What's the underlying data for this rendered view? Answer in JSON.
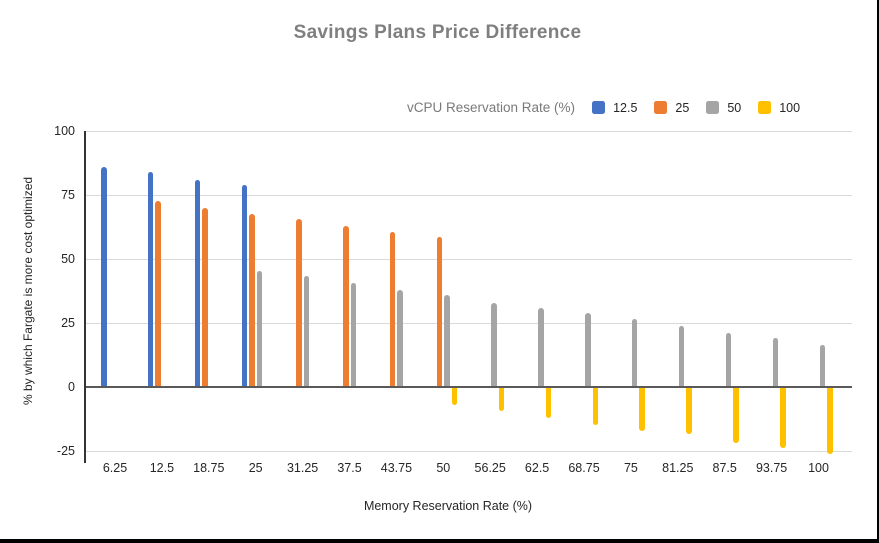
{
  "window": {
    "background": "#ffffff",
    "border_color": "#000000"
  },
  "chart_data": {
    "type": "bar",
    "title": "Savings Plans Price Difference",
    "legend_title": "vCPU Reservation Rate (%)",
    "legend_position": "top",
    "xlabel": "Memory Reservation Rate (%)",
    "ylabel": "% by which Fargate is more cost optimized",
    "ylim": [
      -25,
      100
    ],
    "yticks": [
      100,
      75,
      50,
      25,
      0,
      -25
    ],
    "grid": true,
    "grid_color": "#d9d9d9",
    "zero_line_color": "#595959",
    "title_color": "#7f7f7f",
    "categories": [
      "6.25",
      "12.5",
      "18.75",
      "25",
      "31.25",
      "37.5",
      "43.75",
      "50",
      "56.25",
      "62.5",
      "68.75",
      "75",
      "81.25",
      "87.5",
      "93.75",
      "100"
    ],
    "series": [
      {
        "name": "12.5",
        "color": "#4472C4",
        "values": [
          86,
          84,
          81,
          79,
          null,
          null,
          null,
          null,
          null,
          null,
          null,
          null,
          null,
          null,
          null,
          null
        ]
      },
      {
        "name": "25",
        "color": "#ED7D31",
        "values": [
          null,
          72.5,
          70,
          67.5,
          65.5,
          63,
          60.5,
          58.5,
          null,
          null,
          null,
          null,
          null,
          null,
          null,
          null
        ]
      },
      {
        "name": "50",
        "color": "#A5A5A5",
        "values": [
          null,
          null,
          null,
          45.5,
          43.5,
          40.5,
          38,
          36,
          33,
          31,
          29,
          26.5,
          24,
          21,
          19,
          16.5
        ]
      },
      {
        "name": "100",
        "color": "#FFC000",
        "values": [
          null,
          null,
          null,
          null,
          null,
          null,
          null,
          -7,
          -9.5,
          -12,
          -15,
          -17,
          -18.5,
          -22,
          -24,
          -26
        ]
      }
    ]
  }
}
